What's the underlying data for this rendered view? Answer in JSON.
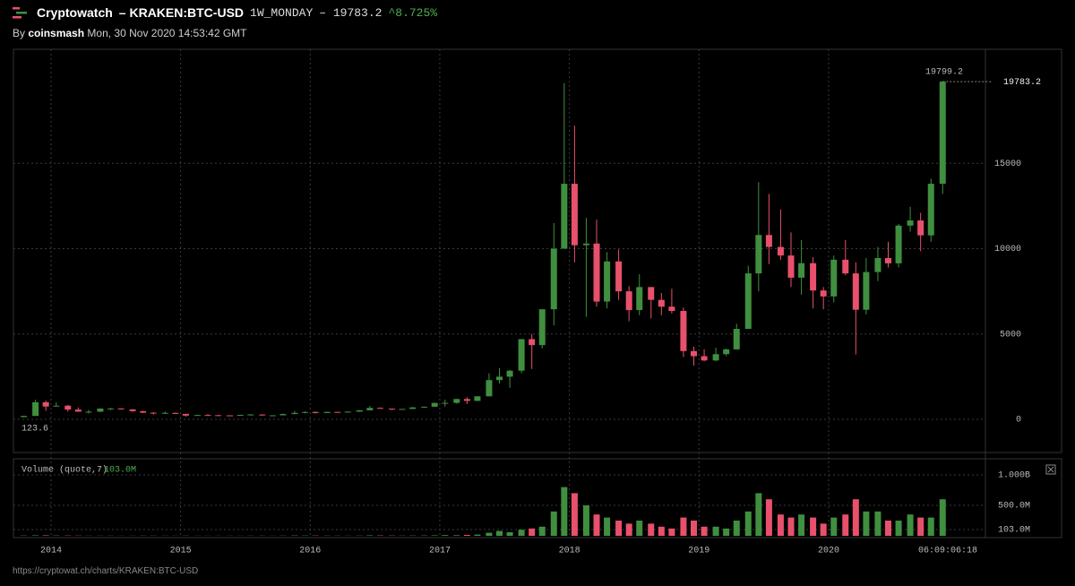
{
  "header": {
    "brand": "Cryptowatch",
    "pair": "– KRAKEN:BTC-USD",
    "interval": "1W_MONDAY",
    "price": "– 19783.2",
    "change": "^8.725%"
  },
  "byline": {
    "by": "By",
    "author": "coinsmash",
    "date": "Mon, 30 Nov 2020 14:53:42 GMT"
  },
  "footer": {
    "url": "https://cryptowat.ch/charts/KRAKEN:BTC-USD"
  },
  "chart_data": {
    "type": "candlestick",
    "up_color": "#3f8f3f",
    "down_color": "#e8506c",
    "grid": true,
    "xlim": [
      2013.71,
      2021.21
    ],
    "xticks": [
      2014,
      2015,
      2016,
      2017,
      2018,
      2019,
      2020
    ],
    "countdown": "06:09:06:18",
    "ylim": [
      -1942,
      21680
    ],
    "yticks": [
      0,
      5000,
      10000,
      15000
    ],
    "last_price": 19783.2,
    "high_label": 19799.2,
    "low_label": 123.6,
    "x": [
      2013.79,
      2013.88,
      2013.96,
      2014.04,
      2014.13,
      2014.21,
      2014.29,
      2014.38,
      2014.46,
      2014.54,
      2014.63,
      2014.71,
      2014.79,
      2014.88,
      2014.96,
      2015.04,
      2015.13,
      2015.21,
      2015.29,
      2015.38,
      2015.46,
      2015.54,
      2015.63,
      2015.71,
      2015.79,
      2015.88,
      2015.96,
      2016.04,
      2016.13,
      2016.21,
      2016.29,
      2016.38,
      2016.46,
      2016.54,
      2016.63,
      2016.71,
      2016.79,
      2016.88,
      2016.96,
      2017.04,
      2017.13,
      2017.21,
      2017.29,
      2017.38,
      2017.46,
      2017.54,
      2017.63,
      2017.71,
      2017.79,
      2017.88,
      2017.96,
      2018.04,
      2018.13,
      2018.21,
      2018.29,
      2018.38,
      2018.46,
      2018.54,
      2018.63,
      2018.71,
      2018.79,
      2018.88,
      2018.96,
      2019.04,
      2019.13,
      2019.21,
      2019.29,
      2019.38,
      2019.46,
      2019.54,
      2019.63,
      2019.71,
      2019.79,
      2019.88,
      2019.96,
      2020.04,
      2020.13,
      2020.21,
      2020.29,
      2020.38,
      2020.46,
      2020.54,
      2020.63,
      2020.71,
      2020.79,
      2020.88
    ],
    "open": [
      130,
      200,
      1000,
      750,
      800,
      570,
      450,
      450,
      630,
      640,
      585,
      480,
      390,
      340,
      380,
      320,
      220,
      255,
      245,
      235,
      230,
      262,
      285,
      230,
      236,
      312,
      378,
      430,
      370,
      435,
      415,
      450,
      530,
      670,
      625,
      575,
      610,
      700,
      740,
      960,
      965,
      1190,
      1080,
      1350,
      2300,
      2500,
      2850,
      4700,
      4350,
      6450,
      10000,
      13800,
      10200,
      10300,
      6900,
      9250,
      7500,
      6400,
      7750,
      7000,
      6600,
      6350,
      4000,
      3700,
      3450,
      3820,
      4100,
      5300,
      8550,
      10800,
      10100,
      9600,
      8300,
      9150,
      7550,
      7200,
      9350,
      8550,
      6420,
      8630,
      9450,
      9140,
      11350,
      11650,
      10780,
      13800
    ],
    "high": [
      210,
      1150,
      1100,
      1000,
      850,
      700,
      550,
      650,
      670,
      650,
      600,
      500,
      420,
      460,
      400,
      320,
      270,
      300,
      260,
      245,
      265,
      315,
      285,
      245,
      335,
      500,
      465,
      460,
      445,
      440,
      465,
      550,
      780,
      700,
      625,
      615,
      720,
      755,
      980,
      1150,
      1200,
      1300,
      1350,
      2700,
      3000,
      2900,
      4700,
      5000,
      6450,
      11500,
      19700,
      17200,
      11800,
      11700,
      9800,
      9950,
      7800,
      8500,
      7750,
      7400,
      7650,
      6550,
      4250,
      4100,
      4200,
      4150,
      5600,
      9000,
      13900,
      13200,
      12300,
      10950,
      10500,
      9500,
      7750,
      9600,
      10500,
      9200,
      9450,
      10100,
      10400,
      11450,
      12450,
      12100,
      14100,
      19799.2
    ],
    "low": [
      123.6,
      200,
      500,
      750,
      450,
      450,
      340,
      420,
      550,
      570,
      450,
      370,
      280,
      310,
      310,
      160,
      210,
      240,
      215,
      225,
      220,
      250,
      200,
      225,
      236,
      300,
      350,
      350,
      365,
      405,
      410,
      440,
      520,
      620,
      540,
      570,
      605,
      690,
      740,
      750,
      920,
      900,
      1070,
      1350,
      2100,
      1850,
      2700,
      2950,
      4150,
      5500,
      10000,
      9200,
      6000,
      6600,
      6500,
      7000,
      5750,
      6100,
      5900,
      6100,
      6200,
      3650,
      3150,
      3400,
      3400,
      3700,
      4080,
      5300,
      7500,
      9100,
      9350,
      7750,
      7300,
      6500,
      6450,
      6850,
      8450,
      3800,
      6150,
      8100,
      8900,
      8900,
      11000,
      9850,
      10400,
      13200
    ],
    "close": [
      200,
      1000,
      750,
      800,
      570,
      450,
      450,
      630,
      640,
      585,
      480,
      390,
      340,
      380,
      320,
      220,
      255,
      245,
      235,
      230,
      262,
      285,
      230,
      236,
      312,
      378,
      430,
      370,
      435,
      415,
      450,
      530,
      670,
      625,
      575,
      610,
      700,
      740,
      960,
      965,
      1190,
      1080,
      1350,
      2300,
      2500,
      2850,
      4700,
      4350,
      6450,
      10000,
      13800,
      10200,
      10300,
      6900,
      9250,
      7500,
      6400,
      7750,
      7000,
      6600,
      6350,
      4000,
      3700,
      3450,
      3820,
      4100,
      5300,
      8550,
      10800,
      10100,
      9600,
      8300,
      9150,
      7550,
      7200,
      9350,
      8550,
      6420,
      8630,
      9450,
      9140,
      11350,
      11650,
      10780,
      13800,
      19783.2
    ],
    "volume_legend": "Volume (quote,7)",
    "volume_legend_value": "103.0M",
    "y2lim": [
      0,
      1265000000
    ],
    "y2ticks": [
      {
        "value": 103000000,
        "label": "103.0M"
      },
      {
        "value": 500000000,
        "label": "500.0M"
      },
      {
        "value": 1000000000,
        "label": "1.000B"
      }
    ],
    "volume": [
      5000000,
      8000000,
      8000000,
      6000000,
      5000000,
      4000000,
      3000000,
      3000000,
      3000000,
      2000000,
      2000000,
      3000000,
      3000000,
      3000000,
      2000000,
      3000000,
      2000000,
      2000000,
      2000000,
      2000000,
      2000000,
      3000000,
      3000000,
      2000000,
      4000000,
      6000000,
      5000000,
      5000000,
      4000000,
      3000000,
      3000000,
      4000000,
      8000000,
      6000000,
      5000000,
      4000000,
      5000000,
      6000000,
      8000000,
      12000000,
      10000000,
      15000000,
      20000000,
      50000000,
      80000000,
      60000000,
      100000000,
      120000000,
      150000000,
      400000000,
      800000000,
      700000000,
      500000000,
      350000000,
      300000000,
      250000000,
      200000000,
      250000000,
      200000000,
      150000000,
      120000000,
      300000000,
      250000000,
      150000000,
      150000000,
      120000000,
      250000000,
      400000000,
      700000000,
      600000000,
      350000000,
      300000000,
      350000000,
      300000000,
      200000000,
      300000000,
      350000000,
      600000000,
      400000000,
      400000000,
      250000000,
      250000000,
      350000000,
      300000000,
      300000000,
      600000000
    ]
  }
}
